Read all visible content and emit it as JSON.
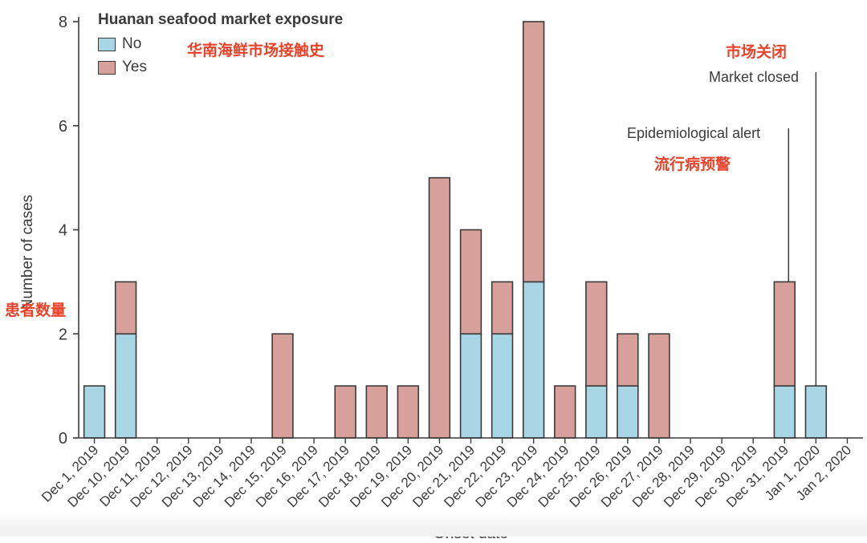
{
  "chart_data": {
    "type": "bar",
    "stacked": true,
    "categories": [
      "Dec 1, 2019",
      "Dec 10, 2019",
      "Dec 11, 2019",
      "Dec 12, 2019",
      "Dec 13, 2019",
      "Dec 14, 2019",
      "Dec 15, 2019",
      "Dec 16, 2019",
      "Dec 17, 2019",
      "Dec 18, 2019",
      "Dec 19, 2019",
      "Dec 20, 2019",
      "Dec 21, 2019",
      "Dec 22, 2019",
      "Dec 23, 2019",
      "Dec 24, 2019",
      "Dec 25, 2019",
      "Dec 26, 2019",
      "Dec 27, 2019",
      "Dec 28, 2019",
      "Dec 29, 2019",
      "Dec 30, 2019",
      "Dec 31, 2019",
      "Jan 1, 2020",
      "Jan 2, 2020"
    ],
    "series": [
      {
        "name": "No",
        "color": "#a9d6e4",
        "values": [
          1,
          2,
          0,
          0,
          0,
          0,
          0,
          0,
          0,
          0,
          0,
          0,
          2,
          2,
          3,
          0,
          1,
          1,
          0,
          0,
          0,
          0,
          1,
          1,
          0
        ]
      },
      {
        "name": "Yes",
        "color": "#d7a09a",
        "values": [
          0,
          1,
          0,
          0,
          0,
          0,
          2,
          0,
          1,
          1,
          1,
          5,
          2,
          1,
          5,
          1,
          2,
          1,
          2,
          0,
          0,
          0,
          2,
          0,
          0
        ]
      }
    ],
    "ylim": [
      0,
      8
    ],
    "yticks": [
      0,
      2,
      4,
      6,
      8
    ],
    "ylabel": "Number of cases",
    "xlabel": "Onset date",
    "legend_title": "Huanan seafood market exposure",
    "legend_position": "top-left",
    "annotations": [
      {
        "text": "Epidemiological alert",
        "at_category": "Dec 31, 2019"
      },
      {
        "text": "Market closed",
        "at_category": "Jan 1, 2020"
      }
    ],
    "overlay_notes": {
      "legend_cn": "华南海鲜市场接触史",
      "ylabel_cn": "患者数量",
      "alert_cn": "流行病预警",
      "closed_cn": "市场关闭"
    }
  }
}
